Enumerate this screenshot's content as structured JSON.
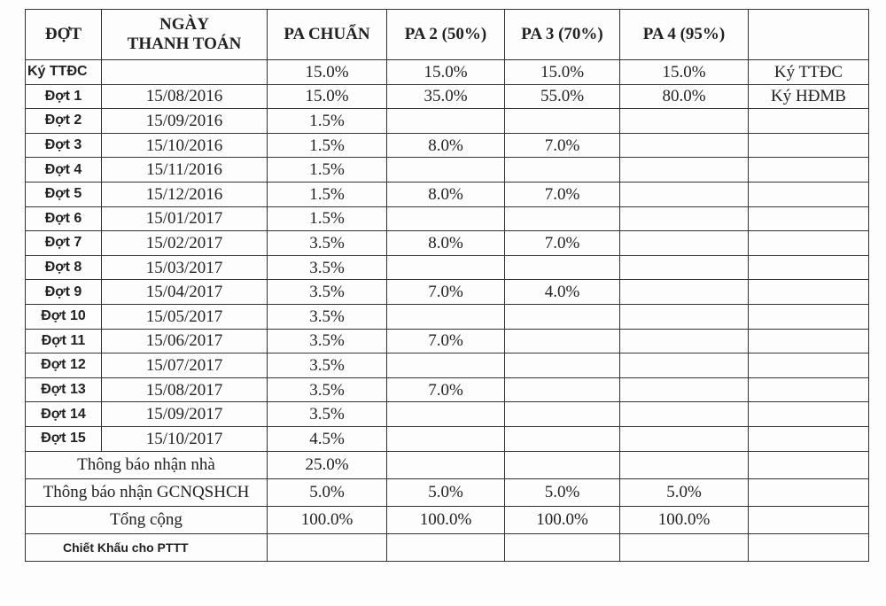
{
  "headers": {
    "dot": "ĐỢT",
    "date_line1": "NGÀY",
    "date_line2": "THANH TOÁN",
    "pa_chuan": "PA CHUẨN",
    "pa2": "PA 2 (50%)",
    "pa3": "PA 3 (70%)",
    "pa4": "PA 4 (95%)",
    "note": ""
  },
  "rows": [
    {
      "dot": "Ký TTĐC",
      "date": "",
      "pa_chuan": "15.0%",
      "pa2": "15.0%",
      "pa3": "15.0%",
      "pa4": "15.0%",
      "note": "Ký TTĐC"
    },
    {
      "dot": "Đợt 1",
      "date": "15/08/2016",
      "pa_chuan": "15.0%",
      "pa2": "35.0%",
      "pa3": "55.0%",
      "pa4": "80.0%",
      "note": "Ký HĐMB"
    },
    {
      "dot": "Đợt 2",
      "date": "15/09/2016",
      "pa_chuan": "1.5%",
      "pa2": "",
      "pa3": "",
      "pa4": "",
      "note": ""
    },
    {
      "dot": "Đợt 3",
      "date": "15/10/2016",
      "pa_chuan": "1.5%",
      "pa2": "8.0%",
      "pa3": "7.0%",
      "pa4": "",
      "note": ""
    },
    {
      "dot": "Đợt 4",
      "date": "15/11/2016",
      "pa_chuan": "1.5%",
      "pa2": "",
      "pa3": "",
      "pa4": "",
      "note": ""
    },
    {
      "dot": "Đợt 5",
      "date": "15/12/2016",
      "pa_chuan": "1.5%",
      "pa2": "8.0%",
      "pa3": "7.0%",
      "pa4": "",
      "note": ""
    },
    {
      "dot": "Đợt 6",
      "date": "15/01/2017",
      "pa_chuan": "1.5%",
      "pa2": "",
      "pa3": "",
      "pa4": "",
      "note": ""
    },
    {
      "dot": "Đợt 7",
      "date": "15/02/2017",
      "pa_chuan": "3.5%",
      "pa2": "8.0%",
      "pa3": "7.0%",
      "pa4": "",
      "note": ""
    },
    {
      "dot": "Đợt 8",
      "date": "15/03/2017",
      "pa_chuan": "3.5%",
      "pa2": "",
      "pa3": "",
      "pa4": "",
      "note": ""
    },
    {
      "dot": "Đợt 9",
      "date": "15/04/2017",
      "pa_chuan": "3.5%",
      "pa2": "7.0%",
      "pa3": "4.0%",
      "pa4": "",
      "note": ""
    },
    {
      "dot": "Đợt 10",
      "date": "15/05/2017",
      "pa_chuan": "3.5%",
      "pa2": "",
      "pa3": "",
      "pa4": "",
      "note": ""
    },
    {
      "dot": "Đợt 11",
      "date": "15/06/2017",
      "pa_chuan": "3.5%",
      "pa2": "7.0%",
      "pa3": "",
      "pa4": "",
      "note": ""
    },
    {
      "dot": "Đợt 12",
      "date": "15/07/2017",
      "pa_chuan": "3.5%",
      "pa2": "",
      "pa3": "",
      "pa4": "",
      "note": ""
    },
    {
      "dot": "Đợt 13",
      "date": "15/08/2017",
      "pa_chuan": "3.5%",
      "pa2": "7.0%",
      "pa3": "",
      "pa4": "",
      "note": ""
    },
    {
      "dot": "Đợt 14",
      "date": "15/09/2017",
      "pa_chuan": "3.5%",
      "pa2": "",
      "pa3": "",
      "pa4": "",
      "note": ""
    },
    {
      "dot": "Đợt 15",
      "date": "15/10/2017",
      "pa_chuan": "4.5%",
      "pa2": "",
      "pa3": "",
      "pa4": "",
      "note": ""
    }
  ],
  "footer": [
    {
      "label": "Thông báo nhận nhà",
      "pa_chuan": "25.0%",
      "pa2": "",
      "pa3": "",
      "pa4": "",
      "note": ""
    },
    {
      "label": "Thông báo nhận GCNQSHCH",
      "pa_chuan": "5.0%",
      "pa2": "5.0%",
      "pa3": "5.0%",
      "pa4": "5.0%",
      "note": ""
    },
    {
      "label": "Tổng cộng",
      "pa_chuan": "100.0%",
      "pa2": "100.0%",
      "pa3": "100.0%",
      "pa4": "100.0%",
      "note": ""
    }
  ],
  "discount": {
    "label": "Chiết Khấu cho PTTT",
    "pa_chuan": "",
    "pa2": "",
    "pa3": "",
    "pa4": "",
    "note": ""
  }
}
